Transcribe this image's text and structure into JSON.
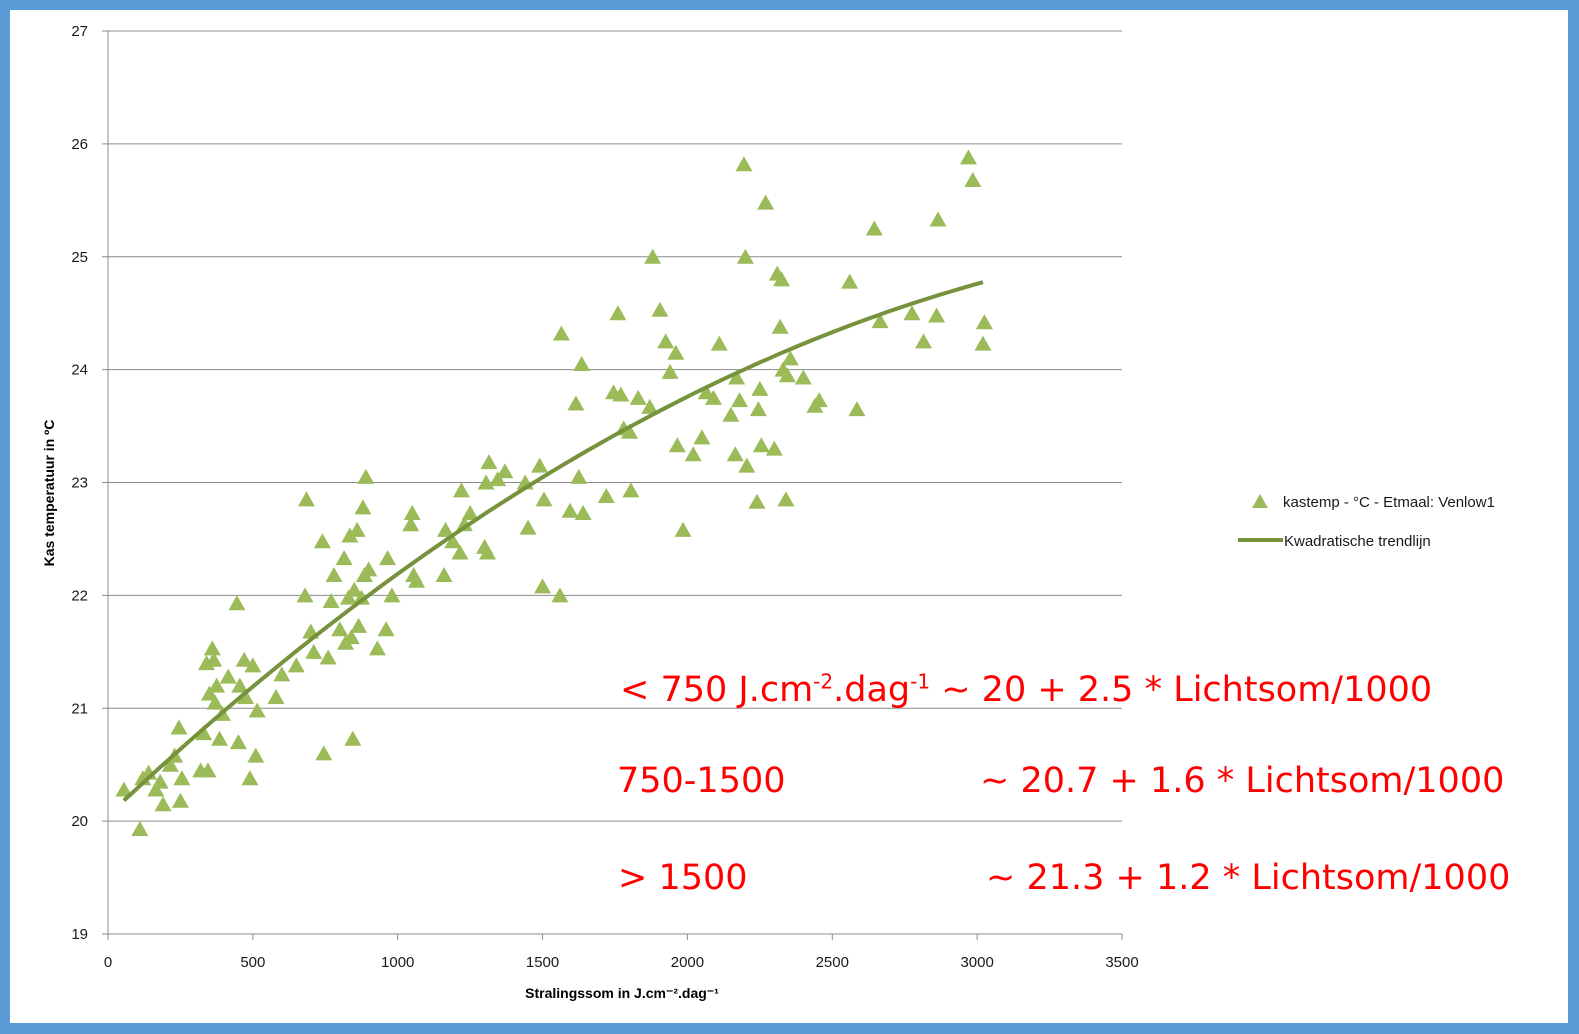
{
  "chart_data": {
    "type": "scatter",
    "xlabel": "Stralingssom in J.cm⁻².dag⁻¹",
    "ylabel": "Kas temperatuur in ºC",
    "xlim": [
      0,
      3500
    ],
    "ylim": [
      19,
      27
    ],
    "xticks": [
      0,
      500,
      1000,
      1500,
      2000,
      2500,
      3000,
      3500
    ],
    "yticks": [
      19,
      20,
      21,
      22,
      23,
      24,
      25,
      26,
      27
    ],
    "grid": true,
    "legend_position": "right",
    "series": [
      {
        "name": "kastemp - °C - Etmaal: Venlow1",
        "marker": "triangle",
        "color": "#9bbb59",
        "points": [
          [
            55,
            20.28
          ],
          [
            110,
            19.93
          ],
          [
            120,
            20.38
          ],
          [
            140,
            20.43
          ],
          [
            165,
            20.28
          ],
          [
            180,
            20.35
          ],
          [
            190,
            20.15
          ],
          [
            215,
            20.5
          ],
          [
            230,
            20.58
          ],
          [
            245,
            20.83
          ],
          [
            250,
            20.18
          ],
          [
            255,
            20.38
          ],
          [
            320,
            20.45
          ],
          [
            330,
            20.78
          ],
          [
            340,
            21.4
          ],
          [
            345,
            20.45
          ],
          [
            350,
            21.13
          ],
          [
            360,
            21.53
          ],
          [
            365,
            21.43
          ],
          [
            370,
            21.05
          ],
          [
            375,
            21.2
          ],
          [
            385,
            20.73
          ],
          [
            395,
            20.95
          ],
          [
            415,
            21.28
          ],
          [
            445,
            21.93
          ],
          [
            450,
            20.7
          ],
          [
            455,
            21.2
          ],
          [
            470,
            21.43
          ],
          [
            475,
            21.1
          ],
          [
            490,
            20.38
          ],
          [
            500,
            21.38
          ],
          [
            510,
            20.58
          ],
          [
            515,
            20.98
          ],
          [
            580,
            21.1
          ],
          [
            600,
            21.3
          ],
          [
            650,
            21.38
          ],
          [
            680,
            22.0
          ],
          [
            685,
            22.85
          ],
          [
            700,
            21.68
          ],
          [
            710,
            21.5
          ],
          [
            740,
            22.48
          ],
          [
            745,
            20.6
          ],
          [
            760,
            21.45
          ],
          [
            770,
            21.95
          ],
          [
            780,
            22.18
          ],
          [
            800,
            21.7
          ],
          [
            815,
            22.33
          ],
          [
            820,
            21.58
          ],
          [
            830,
            21.98
          ],
          [
            835,
            22.53
          ],
          [
            840,
            21.63
          ],
          [
            845,
            20.73
          ],
          [
            850,
            22.05
          ],
          [
            860,
            22.58
          ],
          [
            865,
            21.73
          ],
          [
            875,
            21.98
          ],
          [
            880,
            22.78
          ],
          [
            885,
            22.18
          ],
          [
            890,
            23.05
          ],
          [
            900,
            22.23
          ],
          [
            930,
            21.53
          ],
          [
            960,
            21.7
          ],
          [
            965,
            22.33
          ],
          [
            980,
            22.0
          ],
          [
            1045,
            22.63
          ],
          [
            1050,
            22.73
          ],
          [
            1055,
            22.18
          ],
          [
            1065,
            22.13
          ],
          [
            1160,
            22.18
          ],
          [
            1165,
            22.58
          ],
          [
            1190,
            22.48
          ],
          [
            1215,
            22.38
          ],
          [
            1220,
            22.93
          ],
          [
            1230,
            22.63
          ],
          [
            1250,
            22.73
          ],
          [
            1300,
            22.43
          ],
          [
            1305,
            23.0
          ],
          [
            1310,
            22.38
          ],
          [
            1315,
            23.18
          ],
          [
            1345,
            23.03
          ],
          [
            1370,
            23.1
          ],
          [
            1440,
            23.0
          ],
          [
            1450,
            22.6
          ],
          [
            1490,
            23.15
          ],
          [
            1500,
            22.08
          ],
          [
            1505,
            22.85
          ],
          [
            1560,
            22.0
          ],
          [
            1565,
            24.32
          ],
          [
            1595,
            22.75
          ],
          [
            1615,
            23.7
          ],
          [
            1625,
            23.05
          ],
          [
            1635,
            24.05
          ],
          [
            1640,
            22.73
          ],
          [
            1720,
            22.88
          ],
          [
            1745,
            23.8
          ],
          [
            1760,
            24.5
          ],
          [
            1770,
            23.78
          ],
          [
            1780,
            23.48
          ],
          [
            1800,
            23.45
          ],
          [
            1805,
            22.93
          ],
          [
            1830,
            23.75
          ],
          [
            1870,
            23.67
          ],
          [
            1880,
            25.0
          ],
          [
            1905,
            24.53
          ],
          [
            1925,
            24.25
          ],
          [
            1940,
            23.98
          ],
          [
            1960,
            24.15
          ],
          [
            1965,
            23.33
          ],
          [
            1985,
            22.58
          ],
          [
            2020,
            23.25
          ],
          [
            2050,
            23.4
          ],
          [
            2065,
            23.8
          ],
          [
            2090,
            23.75
          ],
          [
            2110,
            24.23
          ],
          [
            2150,
            23.6
          ],
          [
            2165,
            23.25
          ],
          [
            2170,
            23.93
          ],
          [
            2180,
            23.73
          ],
          [
            2195,
            25.82
          ],
          [
            2200,
            25.0
          ],
          [
            2205,
            23.15
          ],
          [
            2240,
            22.83
          ],
          [
            2245,
            23.65
          ],
          [
            2250,
            23.83
          ],
          [
            2255,
            23.33
          ],
          [
            2270,
            25.48
          ],
          [
            2300,
            23.3
          ],
          [
            2310,
            24.85
          ],
          [
            2320,
            24.38
          ],
          [
            2325,
            24.8
          ],
          [
            2330,
            24.0
          ],
          [
            2340,
            22.85
          ],
          [
            2345,
            23.95
          ],
          [
            2355,
            24.1
          ],
          [
            2400,
            23.93
          ],
          [
            2440,
            23.68
          ],
          [
            2455,
            23.73
          ],
          [
            2560,
            24.78
          ],
          [
            2585,
            23.65
          ],
          [
            2645,
            25.25
          ],
          [
            2665,
            24.43
          ],
          [
            2775,
            24.5
          ],
          [
            2815,
            24.25
          ],
          [
            2860,
            24.48
          ],
          [
            2865,
            25.33
          ],
          [
            2970,
            25.88
          ],
          [
            2985,
            25.68
          ],
          [
            3020,
            24.23
          ],
          [
            3025,
            24.42
          ]
        ]
      },
      {
        "name": "Kwadratische trendlijn",
        "type": "line",
        "color": "#76923c",
        "coefficients": [
          20.05,
          0.002425,
          -2.85e-07
        ],
        "x_range": [
          55,
          3020
        ]
      }
    ],
    "annotations": [
      {
        "prefix": "< 750 J.cm",
        "sup1": "-2",
        "mid": ".dag",
        "sup2": "-1",
        "suffix": " ~ 20 + 2.5 * Lichtsom/1000"
      },
      {
        "range": "750-1500",
        "formula": "~ 20.7 + 1.6 * Lichtsom/1000"
      },
      {
        "range": "> 1500",
        "formula": "~ 21.3 + 1.2 * Lichtsom/1000"
      }
    ]
  }
}
